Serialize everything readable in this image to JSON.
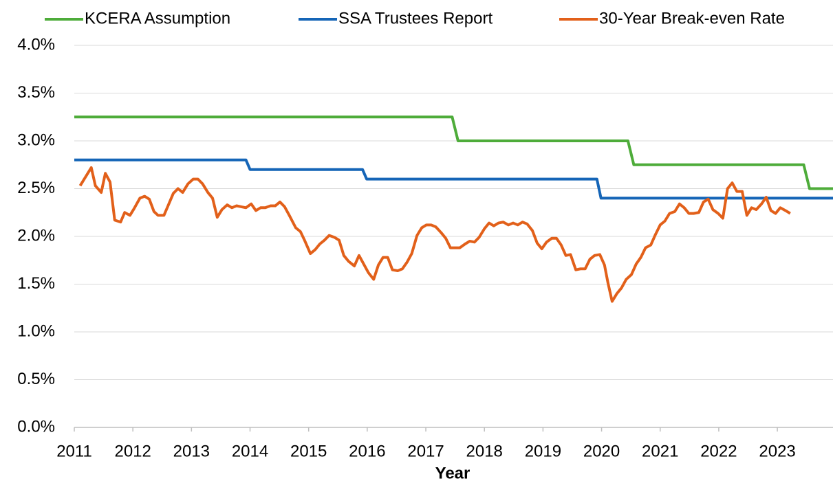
{
  "chart_data": {
    "type": "line",
    "x_label": "Year",
    "legend": "top",
    "grid": true,
    "xlim": [
      2011,
      2023.95
    ],
    "xticks": [
      2011,
      2012,
      2013,
      2014,
      2015,
      2016,
      2017,
      2018,
      2019,
      2020,
      2021,
      2022,
      2023
    ],
    "ylim": [
      0,
      4
    ],
    "yticks": [
      {
        "value": 0,
        "label": "0.0%"
      },
      {
        "value": 0.5,
        "label": "0.5%"
      },
      {
        "value": 1,
        "label": "1.0%"
      },
      {
        "value": 1.5,
        "label": "1.5%"
      },
      {
        "value": 2,
        "label": "2.0%"
      },
      {
        "value": 2.5,
        "label": "2.5%"
      },
      {
        "value": 3,
        "label": "3.0%"
      },
      {
        "value": 3.5,
        "label": "3.5%"
      },
      {
        "value": 4,
        "label": "4.0%"
      }
    ],
    "series": [
      {
        "name": "KCERA Assumption",
        "color": "#4eac3a",
        "x": [
          2011,
          2017.45,
          2017.55,
          2020.45,
          2020.55,
          2023.45,
          2023.55,
          2023.95
        ],
        "values": [
          3.25,
          3.25,
          3.0,
          3.0,
          2.75,
          2.75,
          2.5,
          2.5
        ]
      },
      {
        "name": "SSA Trustees Report",
        "color": "#1565b7",
        "x": [
          2011,
          2013.93,
          2014.0,
          2015.92,
          2015.99,
          2019.92,
          2019.99,
          2023.95
        ],
        "values": [
          2.8,
          2.8,
          2.7,
          2.7,
          2.6,
          2.6,
          2.4,
          2.4
        ]
      },
      {
        "name": "30-Year Break-even Rate",
        "color": "#e2601a",
        "x": [
          2011.1,
          2011.29,
          2011.36,
          2011.46,
          2011.53,
          2011.61,
          2011.69,
          2011.79,
          2011.86,
          2011.95,
          2012.02,
          2012.12,
          2012.2,
          2012.28,
          2012.36,
          2012.43,
          2012.53,
          2012.6,
          2012.69,
          2012.77,
          2012.85,
          2012.94,
          2013.03,
          2013.11,
          2013.19,
          2013.28,
          2013.36,
          2013.44,
          2013.52,
          2013.61,
          2013.69,
          2013.77,
          2013.85,
          2013.93,
          2014.02,
          2014.1,
          2014.18,
          2014.26,
          2014.35,
          2014.43,
          2014.51,
          2014.59,
          2014.67,
          2014.78,
          2014.86,
          2014.93,
          2015.03,
          2015.11,
          2015.19,
          2015.27,
          2015.35,
          2015.44,
          2015.52,
          2015.6,
          2015.68,
          2015.78,
          2015.86,
          2015.94,
          2016.02,
          2016.11,
          2016.19,
          2016.27,
          2016.35,
          2016.43,
          2016.52,
          2016.6,
          2016.68,
          2016.76,
          2016.85,
          2016.93,
          2017.01,
          2017.09,
          2017.17,
          2017.26,
          2017.34,
          2017.42,
          2017.5,
          2017.58,
          2017.67,
          2017.75,
          2017.83,
          2017.91,
          2018.0,
          2018.08,
          2018.16,
          2018.24,
          2018.32,
          2018.41,
          2018.49,
          2018.57,
          2018.65,
          2018.73,
          2018.82,
          2018.9,
          2018.98,
          2019.06,
          2019.15,
          2019.23,
          2019.31,
          2019.39,
          2019.47,
          2019.56,
          2019.64,
          2019.72,
          2019.8,
          2019.88,
          2019.97,
          2020.05,
          2020.11,
          2020.18,
          2020.26,
          2020.34,
          2020.42,
          2020.51,
          2020.59,
          2020.67,
          2020.75,
          2020.84,
          2020.92,
          2021.0,
          2021.08,
          2021.16,
          2021.25,
          2021.33,
          2021.41,
          2021.49,
          2021.57,
          2021.66,
          2021.74,
          2021.82,
          2021.9,
          2021.99,
          2022.07,
          2022.15,
          2022.23,
          2022.31,
          2022.4,
          2022.48,
          2022.56,
          2022.64,
          2022.73,
          2022.81,
          2022.89,
          2022.97,
          2023.05,
          2023.14,
          2023.22
        ],
        "values": [
          2.53,
          2.72,
          2.53,
          2.46,
          2.66,
          2.57,
          2.17,
          2.15,
          2.25,
          2.22,
          2.29,
          2.4,
          2.42,
          2.39,
          2.26,
          2.22,
          2.22,
          2.32,
          2.45,
          2.5,
          2.46,
          2.55,
          2.6,
          2.6,
          2.55,
          2.46,
          2.4,
          2.2,
          2.28,
          2.33,
          2.3,
          2.32,
          2.31,
          2.3,
          2.34,
          2.27,
          2.3,
          2.3,
          2.32,
          2.32,
          2.36,
          2.31,
          2.22,
          2.09,
          2.05,
          1.96,
          1.82,
          1.86,
          1.92,
          1.96,
          2.01,
          1.99,
          1.96,
          1.8,
          1.74,
          1.69,
          1.8,
          1.71,
          1.62,
          1.55,
          1.7,
          1.78,
          1.78,
          1.65,
          1.64,
          1.66,
          1.73,
          1.82,
          2.01,
          2.09,
          2.12,
          2.12,
          2.1,
          2.04,
          1.98,
          1.88,
          1.88,
          1.88,
          1.92,
          1.95,
          1.94,
          1.99,
          2.08,
          2.14,
          2.11,
          2.14,
          2.15,
          2.12,
          2.14,
          2.12,
          2.15,
          2.13,
          2.06,
          1.93,
          1.87,
          1.94,
          1.98,
          1.98,
          1.91,
          1.8,
          1.81,
          1.65,
          1.66,
          1.66,
          1.76,
          1.8,
          1.81,
          1.7,
          1.51,
          1.32,
          1.4,
          1.46,
          1.55,
          1.6,
          1.71,
          1.78,
          1.88,
          1.91,
          2.02,
          2.12,
          2.16,
          2.24,
          2.26,
          2.34,
          2.3,
          2.24,
          2.24,
          2.25,
          2.36,
          2.39,
          2.28,
          2.24,
          2.19,
          2.5,
          2.56,
          2.47,
          2.47,
          2.22,
          2.3,
          2.28,
          2.34,
          2.41,
          2.27,
          2.24,
          2.3,
          2.27,
          2.24
        ]
      }
    ]
  }
}
